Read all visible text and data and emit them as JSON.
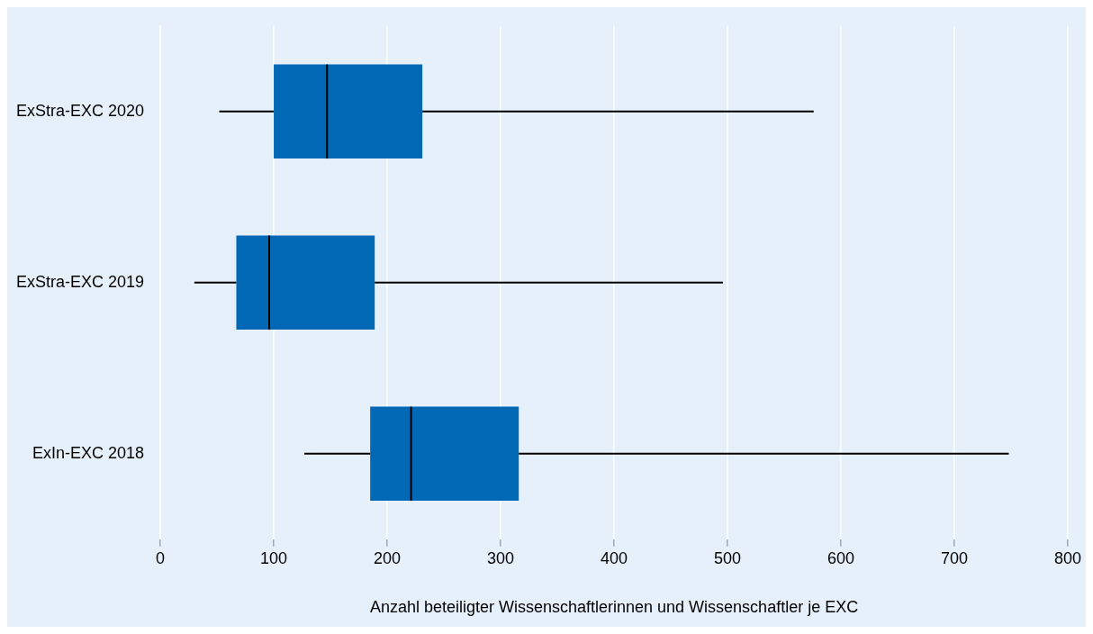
{
  "chart_data": {
    "type": "box",
    "orientation": "horizontal",
    "xlabel": "Anzahl beteiligter Wissenschaftlerinnen und Wissenschaftler je EXC",
    "categories": [
      "ExStra-EXC 2020",
      "ExStra-EXC 2019",
      "ExIn-EXC 2018"
    ],
    "boxes": [
      {
        "low": 52,
        "q1": 100,
        "median": 147,
        "q3": 231,
        "high": 576
      },
      {
        "low": 30,
        "q1": 67,
        "median": 96,
        "q3": 189,
        "high": 496
      },
      {
        "low": 127,
        "q1": 185,
        "median": 221,
        "q3": 316,
        "high": 748
      }
    ],
    "color": "#0068b4",
    "xlim": [
      0,
      800
    ],
    "xticks": [
      0,
      100,
      200,
      300,
      400,
      500,
      600,
      700,
      800
    ],
    "grid": "x",
    "legend": false
  }
}
